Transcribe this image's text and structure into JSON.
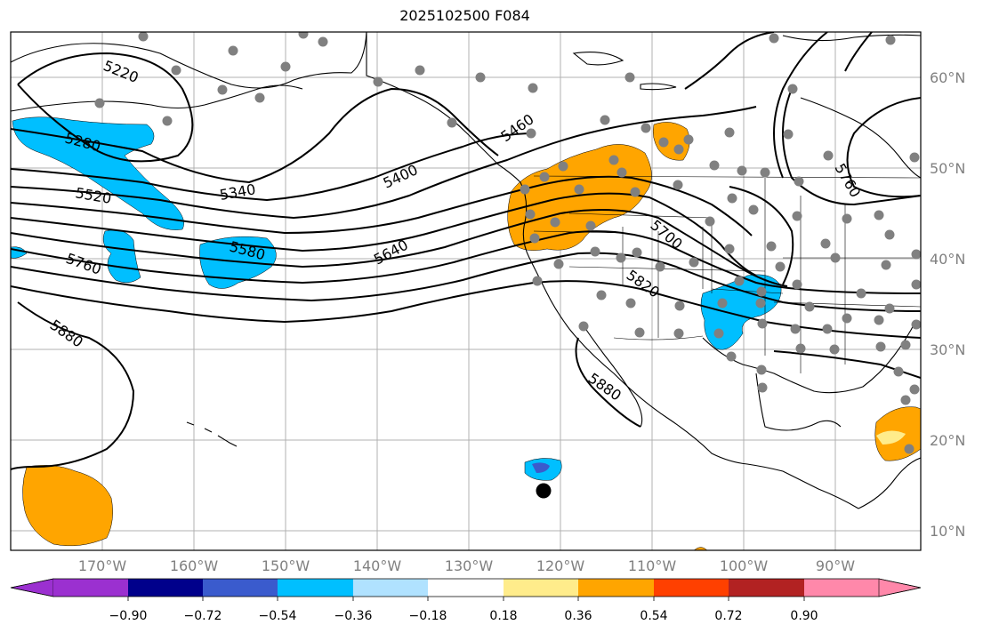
{
  "title": "2025102500 F084",
  "map": {
    "lon_labels": [
      "170°W",
      "160°W",
      "150°W",
      "140°W",
      "130°W",
      "120°W",
      "110°W",
      "100°W",
      "90°W"
    ],
    "lat_labels": [
      "60°N",
      "50°N",
      "40°N",
      "30°N",
      "20°N",
      "10°N"
    ],
    "contour_labels": [
      "5220",
      "5280",
      "5340",
      "5400",
      "5460",
      "5520",
      "5580",
      "5640",
      "5700",
      "5760",
      "5820",
      "5880",
      "5880",
      "5760"
    ],
    "colors": {
      "positive_light": "#ffec8b",
      "positive_mid": "#ffa500",
      "negative_mid": "#00bfff",
      "negative_strong": "#3b5bcc",
      "station_dot": "#808080",
      "marker": "#000000"
    }
  },
  "colorbar": {
    "ticks": [
      "−0.90",
      "−0.72",
      "−0.54",
      "−0.36",
      "−0.18",
      "0.18",
      "0.36",
      "0.54",
      "0.72",
      "0.90"
    ],
    "colors": [
      "#9b30d0",
      "#00008b",
      "#3a5bcd",
      "#00bfff",
      "#b0e2ff",
      "#ffffff",
      "#ffec8b",
      "#ffa500",
      "#ff4000",
      "#b22222",
      "#ff88aa"
    ]
  }
}
